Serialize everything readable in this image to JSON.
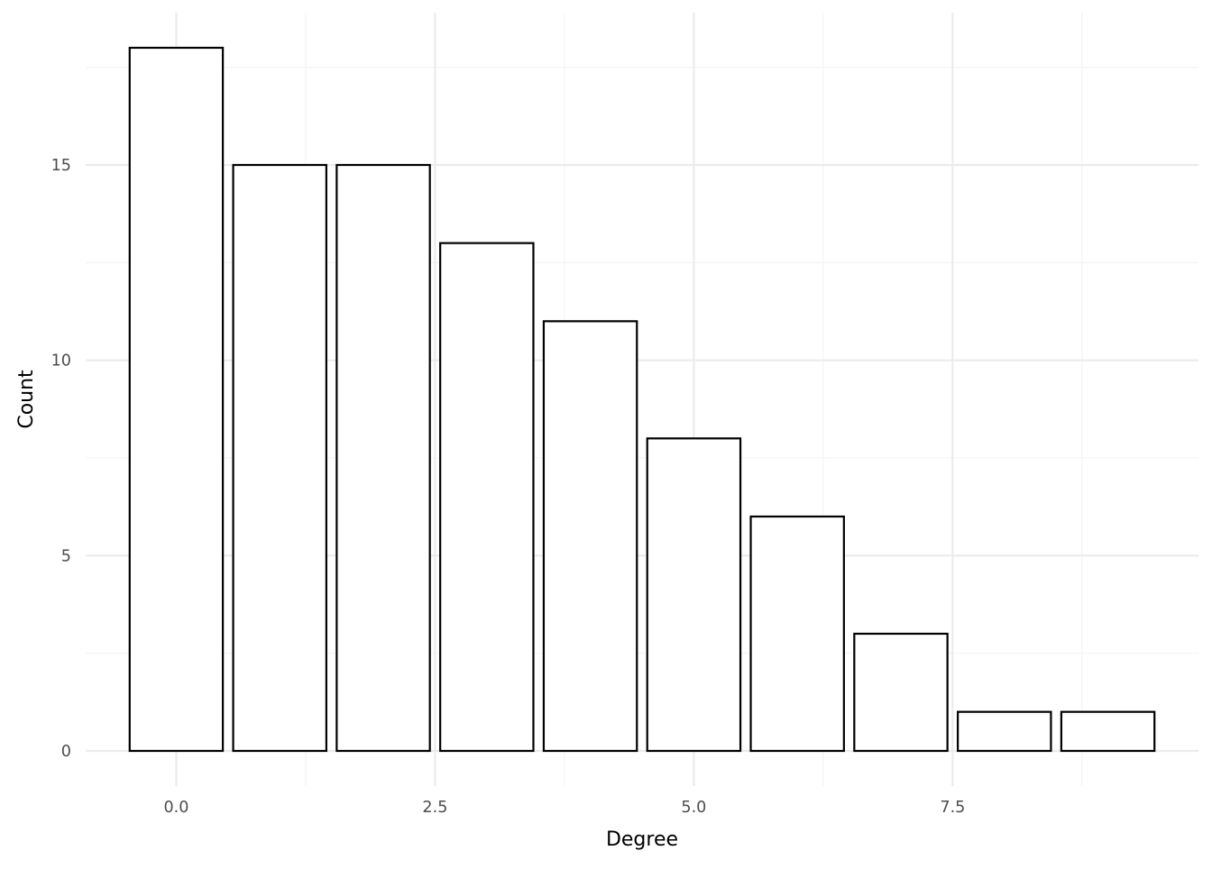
{
  "chart_data": {
    "type": "bar",
    "title": "",
    "xlabel": "Degree",
    "ylabel": "Count",
    "x": [
      0,
      1,
      2,
      3,
      4,
      5,
      6,
      7,
      8,
      9
    ],
    "values": [
      18,
      15,
      15,
      13,
      11,
      8,
      6,
      3,
      1,
      1
    ],
    "xlim": [
      -0.875,
      9.875
    ],
    "ylim": [
      -0.9,
      18.9
    ],
    "x_ticks": [
      {
        "value": 0,
        "label": "0.0"
      },
      {
        "value": 2.5,
        "label": "2.5"
      },
      {
        "value": 5,
        "label": "5.0"
      },
      {
        "value": 7.5,
        "label": "7.5"
      }
    ],
    "y_ticks": [
      {
        "value": 0,
        "label": "0"
      },
      {
        "value": 5,
        "label": "5"
      },
      {
        "value": 10,
        "label": "10"
      },
      {
        "value": 15,
        "label": "15"
      }
    ],
    "x_minor_ticks": [
      1.25,
      3.75,
      6.25,
      8.75
    ],
    "y_minor_ticks": [
      2.5,
      7.5,
      12.5,
      17.5
    ],
    "bar_width": 0.9,
    "bar_fill": "#ffffff",
    "bar_outline": "#000000",
    "grid": true,
    "legend": "none"
  }
}
